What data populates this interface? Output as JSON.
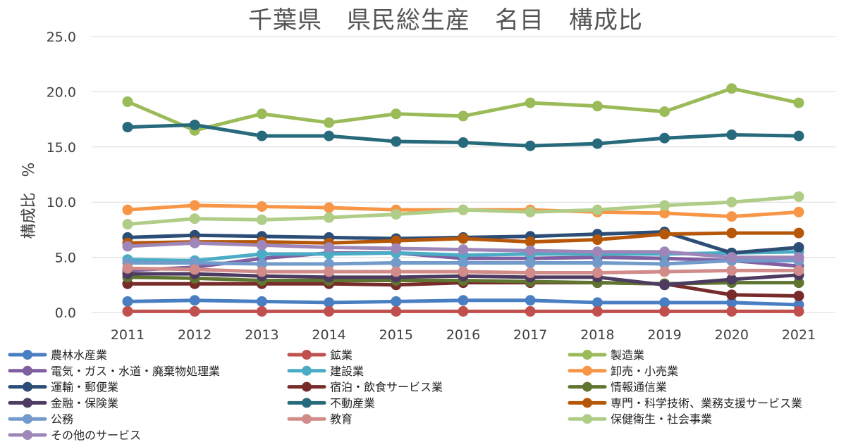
{
  "chart_data": {
    "type": "line",
    "title": "千葉県　県民総生産　名目　構成比",
    "xlabel": "",
    "ylabel": "構成比　%",
    "ylim": [
      0,
      25
    ],
    "yticks": [
      "0.0",
      "5.0",
      "10.0",
      "15.0",
      "20.0",
      "25.0"
    ],
    "grid": true,
    "legend_position": "bottom",
    "categories": [
      "2011",
      "2012",
      "2013",
      "2014",
      "2015",
      "2016",
      "2017",
      "2018",
      "2019",
      "2020",
      "2021"
    ],
    "series": [
      {
        "name": "農林水産業",
        "color": "#4A7EC2",
        "values": [
          1.0,
          1.1,
          1.0,
          0.9,
          1.0,
          1.1,
          1.1,
          0.9,
          0.9,
          0.9,
          0.7
        ]
      },
      {
        "name": "鉱業",
        "color": "#C0504D",
        "values": [
          0.1,
          0.1,
          0.1,
          0.1,
          0.1,
          0.1,
          0.1,
          0.1,
          0.1,
          0.1,
          0.1
        ]
      },
      {
        "name": "製造業",
        "color": "#9BBB59",
        "values": [
          19.1,
          16.5,
          18.0,
          17.2,
          18.0,
          17.8,
          19.0,
          18.7,
          18.2,
          20.3,
          19.0
        ]
      },
      {
        "name": "電気・ガス・水道・廃棄物処理業",
        "color": "#7F5FA0",
        "values": [
          3.8,
          4.1,
          4.9,
          5.4,
          5.4,
          4.9,
          4.9,
          5.0,
          4.9,
          4.7,
          4.2
        ]
      },
      {
        "name": "建設業",
        "color": "#4BACC6",
        "values": [
          4.8,
          4.7,
          5.3,
          5.3,
          5.4,
          5.2,
          5.3,
          5.3,
          5.3,
          5.4,
          5.5
        ]
      },
      {
        "name": "卸売・小売業",
        "color": "#F79646",
        "values": [
          9.3,
          9.7,
          9.6,
          9.5,
          9.3,
          9.3,
          9.3,
          9.1,
          9.0,
          8.7,
          9.1
        ]
      },
      {
        "name": "運輸・郵便業",
        "color": "#2C4D75",
        "values": [
          6.8,
          7.0,
          6.9,
          6.8,
          6.7,
          6.8,
          6.9,
          7.1,
          7.3,
          5.4,
          5.9
        ]
      },
      {
        "name": "宿泊・飲食サービス業",
        "color": "#772C2A",
        "values": [
          2.6,
          2.6,
          2.6,
          2.6,
          2.5,
          2.7,
          2.7,
          2.7,
          2.6,
          1.6,
          1.5
        ]
      },
      {
        "name": "情報通信業",
        "color": "#5F7530",
        "values": [
          3.2,
          3.1,
          2.9,
          2.9,
          2.9,
          2.9,
          2.8,
          2.7,
          2.6,
          2.7,
          2.7
        ]
      },
      {
        "name": "金融・保険業",
        "color": "#4D3B62",
        "values": [
          3.5,
          3.5,
          3.3,
          3.2,
          3.2,
          3.3,
          3.2,
          3.2,
          2.5,
          3.0,
          3.4
        ]
      },
      {
        "name": "不動産業",
        "color": "#276A7C",
        "values": [
          16.8,
          17.0,
          16.0,
          16.0,
          15.5,
          15.4,
          15.1,
          15.3,
          15.8,
          16.1,
          16.0
        ]
      },
      {
        "name": "専門・科学技術、業務支援サービス業",
        "color": "#B65708",
        "values": [
          6.3,
          6.4,
          6.4,
          6.3,
          6.5,
          6.7,
          6.4,
          6.6,
          7.1,
          7.2,
          7.2
        ]
      },
      {
        "name": "公務",
        "color": "#729ACA",
        "values": [
          4.5,
          4.5,
          4.4,
          4.4,
          4.5,
          4.5,
          4.5,
          4.5,
          4.4,
          4.7,
          4.7
        ]
      },
      {
        "name": "教育",
        "color": "#D18B89",
        "values": [
          4.0,
          3.9,
          3.7,
          3.7,
          3.7,
          3.7,
          3.6,
          3.6,
          3.7,
          3.8,
          3.8
        ]
      },
      {
        "name": "保健衛生・社会事業",
        "color": "#AFCD86",
        "values": [
          8.0,
          8.5,
          8.4,
          8.6,
          8.9,
          9.3,
          9.1,
          9.3,
          9.7,
          10.0,
          10.5
        ]
      },
      {
        "name": "その他のサービス",
        "color": "#9E86B8",
        "values": [
          6.0,
          6.3,
          6.1,
          5.9,
          5.8,
          5.7,
          5.6,
          5.5,
          5.5,
          5.0,
          5.0
        ]
      }
    ]
  }
}
